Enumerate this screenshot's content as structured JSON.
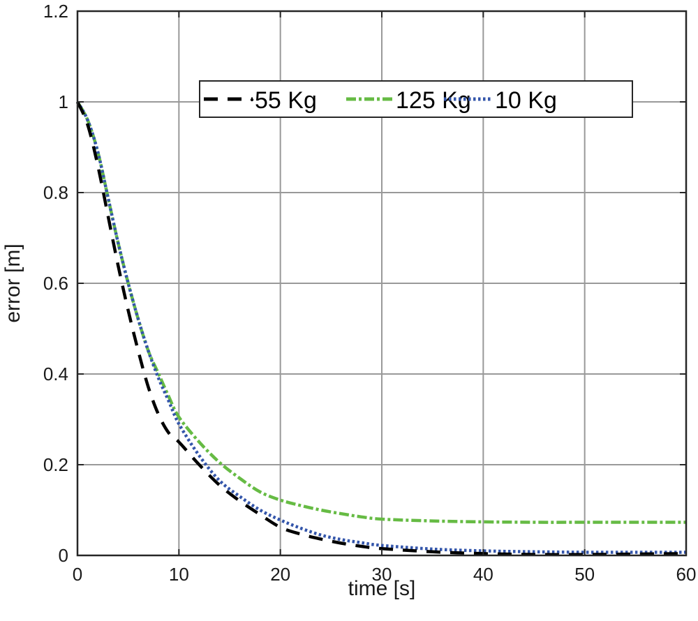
{
  "chart_data": {
    "type": "line",
    "title": "",
    "xlabel": "time [s]",
    "ylabel": "error [m]",
    "xlim": [
      0,
      60
    ],
    "ylim": [
      0,
      1.2
    ],
    "xticks": [
      0,
      10,
      20,
      30,
      40,
      50,
      60
    ],
    "yticks": [
      0,
      0.2,
      0.4,
      0.6,
      0.8,
      1,
      1.2
    ],
    "xtick_labels": [
      "0",
      "10",
      "20",
      "30",
      "40",
      "50",
      "60"
    ],
    "ytick_labels": [
      "0",
      "0.2",
      "0.4",
      "0.6",
      "0.8",
      "1",
      "1.2"
    ],
    "grid": true,
    "legend_position": "upper-right-inside, horizontal",
    "x": [
      0,
      1,
      2,
      3,
      4,
      5,
      6,
      7,
      8,
      9,
      10,
      12,
      14,
      16,
      18,
      20,
      22,
      24,
      26,
      28,
      30,
      35,
      40,
      45,
      50,
      55,
      60
    ],
    "series": [
      {
        "name": "55 Kg",
        "color": "#000000",
        "style": "dashed",
        "values": [
          1.0,
          0.95,
          0.86,
          0.75,
          0.64,
          0.54,
          0.45,
          0.37,
          0.31,
          0.27,
          0.25,
          0.2,
          0.155,
          0.12,
          0.09,
          0.062,
          0.047,
          0.036,
          0.027,
          0.02,
          0.015,
          0.008,
          0.004,
          0.002,
          0.002,
          0.003,
          0.004
        ]
      },
      {
        "name": "125 Kg",
        "color": "#66bb44",
        "style": "dash-dot",
        "values": [
          1.0,
          0.96,
          0.89,
          0.79,
          0.69,
          0.6,
          0.52,
          0.45,
          0.4,
          0.35,
          0.305,
          0.25,
          0.205,
          0.17,
          0.14,
          0.122,
          0.11,
          0.1,
          0.092,
          0.085,
          0.08,
          0.076,
          0.074,
          0.073,
          0.073,
          0.073,
          0.073
        ]
      },
      {
        "name": "10 Kg",
        "color": "#3355aa",
        "style": "dotted",
        "values": [
          1.0,
          0.96,
          0.89,
          0.79,
          0.69,
          0.6,
          0.52,
          0.45,
          0.39,
          0.34,
          0.29,
          0.22,
          0.165,
          0.13,
          0.1,
          0.078,
          0.06,
          0.045,
          0.035,
          0.028,
          0.022,
          0.014,
          0.01,
          0.008,
          0.007,
          0.007,
          0.007
        ]
      }
    ]
  },
  "legend": {
    "items": [
      {
        "label": "55 Kg"
      },
      {
        "label": "125 Kg"
      },
      {
        "label": "10 Kg"
      }
    ]
  },
  "colors": {
    "grid": "#999999",
    "axes": "#262626",
    "series_55": "#000000",
    "series_125": "#66bb44",
    "series_10": "#3355aa"
  }
}
